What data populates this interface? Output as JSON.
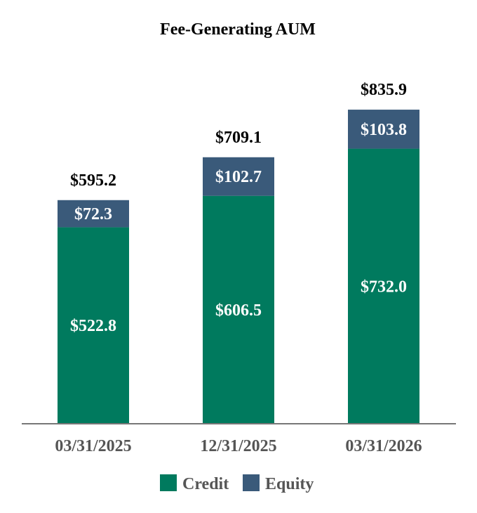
{
  "chart_data": {
    "type": "bar",
    "stacked": true,
    "title": "Fee-Generating AUM",
    "categories": [
      "03/31/2025",
      "12/31/2025",
      "03/31/2026"
    ],
    "series": [
      {
        "name": "Credit",
        "values": [
          522.8,
          606.5,
          732.0
        ],
        "labels": [
          "$522.8",
          "$606.5",
          "$732.0"
        ],
        "color": "#007a5e"
      },
      {
        "name": "Equity",
        "values": [
          72.3,
          102.7,
          103.8
        ],
        "labels": [
          "$72.3",
          "$102.7",
          "$103.8"
        ],
        "color": "#3a5a7a"
      }
    ],
    "totals": [
      595.2,
      709.1,
      835.9
    ],
    "total_labels": [
      "$595.2",
      "$709.1",
      "$835.9"
    ],
    "ylim": [
      0,
      835.9
    ],
    "xlabel": "",
    "ylabel": "",
    "grid": false,
    "legend": "bottom",
    "axis_color": "#777777"
  }
}
